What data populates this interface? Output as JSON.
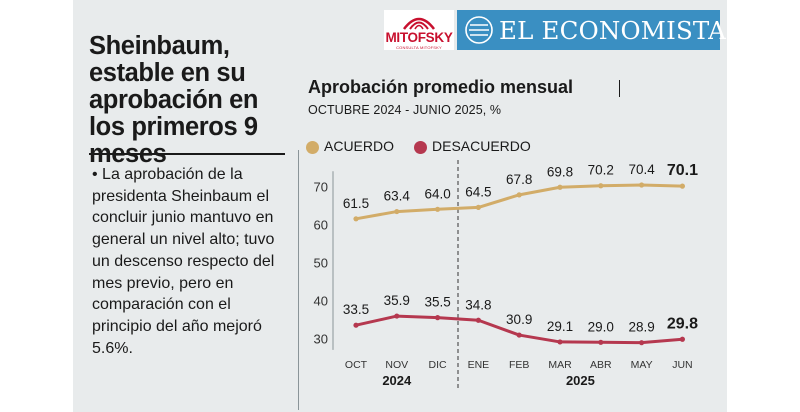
{
  "headline": "Sheinbaum, estable en su aprobación en los primeros 9 meses",
  "body": "• La aprobación de la presidenta Sheinbaum el concluir junio mantuvo en general un nivel alto; tuvo un descenso respecto del mes previo, pero en comparación con el principio del año mejoró 5.6%.",
  "logos": {
    "mitofsky": "MITOFSKY",
    "mitofsky_tag": "CONSULTA MITOFSKY",
    "economista": "EL ECONOMISTA"
  },
  "colors": {
    "acuerdo": "#d2ac68",
    "desacuerdo": "#b5384f",
    "background": "#e8ebec",
    "economista_blue": "#3a8fc2",
    "mitofsky_red": "#c8102e"
  },
  "chart_data": {
    "type": "line",
    "title": "Aprobación promedio mensual",
    "subtitle": "OCTUBRE 2024 - JUNIO 2025, %",
    "categories": [
      "OCT",
      "NOV",
      "DIC",
      "ENE",
      "FEB",
      "MAR",
      "ABR",
      "MAY",
      "JUN"
    ],
    "years": [
      {
        "label": "2024",
        "from": 0,
        "to": 2
      },
      {
        "label": "2025",
        "from": 3,
        "to": 8
      }
    ],
    "series": [
      {
        "name": "ACUERDO",
        "color": "#d2ac68",
        "values": [
          61.5,
          63.4,
          64.0,
          64.5,
          67.8,
          69.8,
          70.2,
          70.4,
          70.1
        ]
      },
      {
        "name": "DESACUERDO",
        "color": "#b5384f",
        "values": [
          33.5,
          35.9,
          35.5,
          34.8,
          30.9,
          29.1,
          29.0,
          28.9,
          29.8
        ]
      }
    ],
    "value_labels": [
      [
        "61.5",
        "63.4",
        "64.0",
        "64.5",
        "67.8",
        "69.8",
        "70.2",
        "70.4",
        "70.1"
      ],
      [
        "33.5",
        "35.9",
        "35.5",
        "34.8",
        "30.9",
        "29.1",
        "29.0",
        "28.9",
        "29.8"
      ]
    ],
    "yticks": [
      30,
      40,
      50,
      60,
      70
    ],
    "ylim": [
      25,
      75
    ],
    "grid": false,
    "legend": "top-left"
  }
}
